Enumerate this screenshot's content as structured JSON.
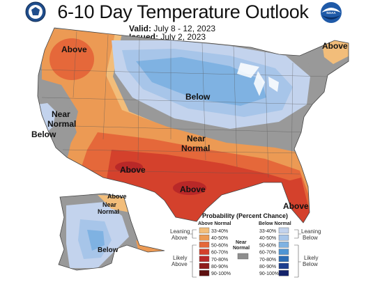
{
  "header": {
    "title": "6-10 Day Temperature Outlook",
    "valid_label": "Valid:",
    "valid_dates": "July 8 - 12, 2023",
    "issued_label": "Issued:",
    "issued_date": "July 2, 2023"
  },
  "logos": {
    "left_icon": "commerce-seal-icon",
    "right_icon": "noaa-logo-icon",
    "right_text": "NOAA"
  },
  "map_labels": {
    "above_northwest": "Above",
    "above_northeast": "Above",
    "near_normal_west_1": "Near",
    "near_normal_west_2": "Normal",
    "below_west": "Below",
    "below_north": "Below",
    "near_normal_central_1": "Near",
    "near_normal_central_2": "Normal",
    "above_south_1": "Above",
    "above_south_2": "Above",
    "above_florida": "Above",
    "alaska_above": "Above",
    "alaska_near_1": "Near",
    "alaska_near_2": "Normal",
    "alaska_below": "Below"
  },
  "legend": {
    "title": "Probability (Percent Chance)",
    "above_header": "Above Normal",
    "below_header": "Below Normal",
    "near_header_1": "Near",
    "near_header_2": "Normal",
    "leaning_above_1": "Leaning",
    "leaning_above_2": "Above",
    "likely_above_1": "Likely",
    "likely_above_2": "Above",
    "leaning_below_1": "Leaning",
    "leaning_below_2": "Below",
    "likely_below_1": "Likely",
    "likely_below_2": "Below",
    "ranges": [
      "33-40%",
      "40-50%",
      "50-60%",
      "60-70%",
      "70-80%",
      "80-90%",
      "90-100%"
    ],
    "above_colors": [
      "#f2bd7a",
      "#ec9a54",
      "#e5683a",
      "#d4412c",
      "#b92828",
      "#8f1c1c",
      "#5e1010"
    ],
    "below_colors": [
      "#c3d3ed",
      "#a7c5e9",
      "#7fb2e2",
      "#4f95d4",
      "#2b6cb5",
      "#1d3f8f",
      "#14236b"
    ],
    "near_color": "#8e8e8e"
  },
  "map_colors": {
    "near_normal": "#999999",
    "above_33": "#f2bd7a",
    "above_40": "#ec9a54",
    "above_50": "#e5683a",
    "above_60": "#d4412c",
    "above_70": "#b92828",
    "below_33": "#c3d3ed",
    "below_40": "#a7c5e9",
    "below_50": "#7fb2e2"
  }
}
